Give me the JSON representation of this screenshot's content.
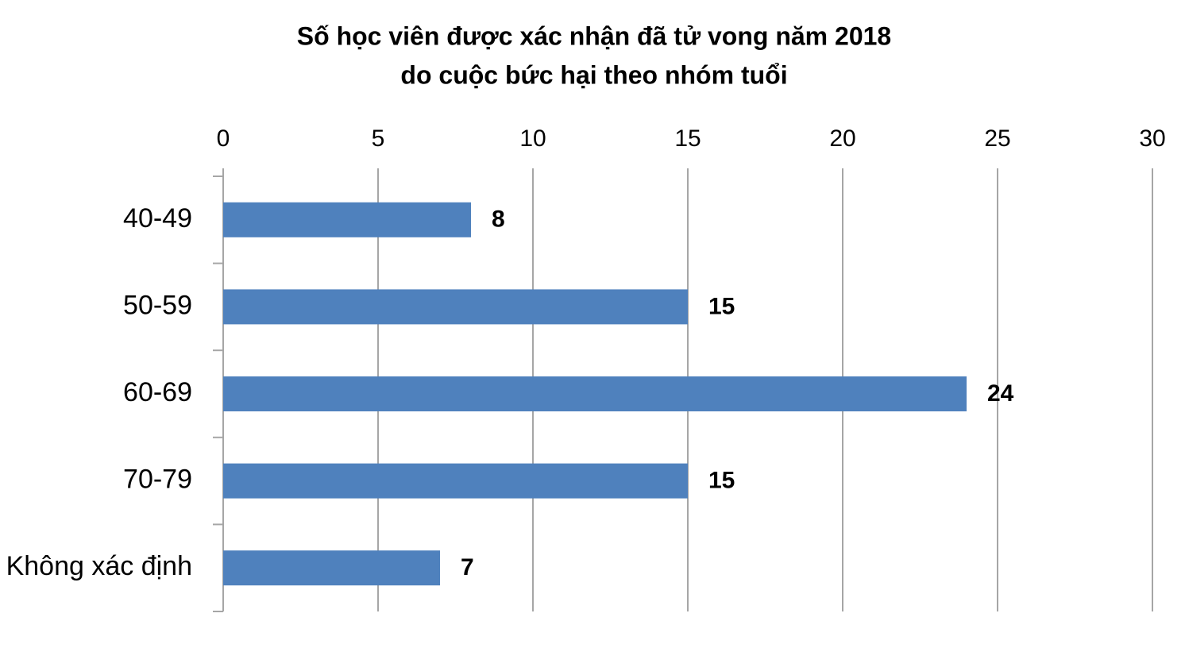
{
  "chart_data": {
    "type": "bar",
    "orientation": "horizontal",
    "title": [
      "Số học viên được xác nhận đã tử vong năm 2018",
      "do cuộc bức hại theo nhóm tuổi"
    ],
    "categories": [
      "40-49",
      "50-59",
      "60-69",
      "70-79",
      "Không xác định"
    ],
    "values": [
      8,
      15,
      24,
      15,
      7
    ],
    "color": "#4f81bd",
    "xlim": [
      0,
      30
    ],
    "xticks": [
      0,
      5,
      10,
      15,
      20,
      25,
      30
    ],
    "grid": true
  }
}
